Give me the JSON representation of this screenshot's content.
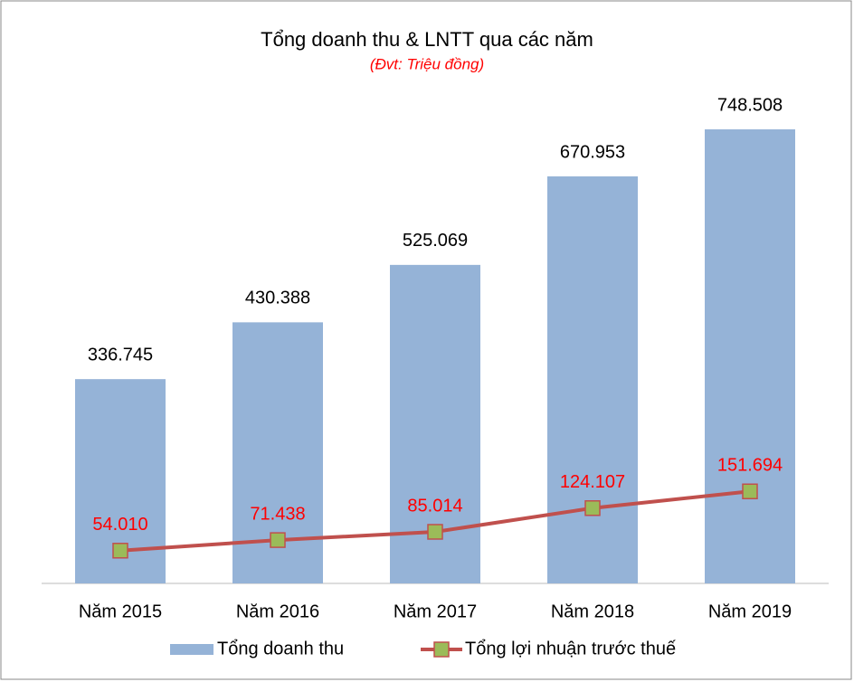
{
  "chart_data": {
    "type": "bar",
    "title": "Tổng doanh thu & LNTT qua các năm",
    "subtitle": "(Đvt: Triệu đồng)",
    "categories": [
      "Năm 2015",
      "Năm 2016",
      "Năm 2017",
      "Năm 2018",
      "Năm 2019"
    ],
    "series": [
      {
        "name": "Tổng doanh thu",
        "type": "bar",
        "color": "#95b3d7",
        "values": [
          336745,
          430388,
          525069,
          670953,
          748508
        ],
        "value_labels": [
          "336.745",
          "430.388",
          "525.069",
          "670.953",
          "748.508"
        ]
      },
      {
        "name": "Tổng lợi nhuận trước thuế",
        "type": "line",
        "color": "#c0504d",
        "marker_color": "#9bbb59",
        "label_color": "#ff0000",
        "values": [
          54010,
          71438,
          85014,
          124107,
          151694
        ],
        "value_labels": [
          "54.010",
          "71.438",
          "85.014",
          "124.107",
          "151.694"
        ]
      }
    ],
    "legend": "bottom"
  }
}
